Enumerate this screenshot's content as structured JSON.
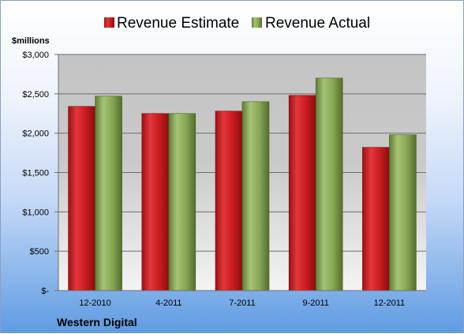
{
  "chart_data": {
    "type": "bar",
    "categories": [
      "12-2010",
      "4-2011",
      "7-2011",
      "9-2011",
      "12-2011"
    ],
    "series": [
      {
        "name": "Revenue Estimate",
        "values": [
          2340,
          2250,
          2280,
          2480,
          1820
        ],
        "color": "#d01e22"
      },
      {
        "name": "Revenue Actual",
        "values": [
          2470,
          2250,
          2400,
          2700,
          1980
        ],
        "color": "#8cae5a"
      }
    ],
    "unit_label": "$millions",
    "ylim": [
      0,
      3000
    ],
    "y_ticks": [
      {
        "value": 0,
        "label": "$-"
      },
      {
        "value": 500,
        "label": "$500"
      },
      {
        "value": 1000,
        "label": "$1,000"
      },
      {
        "value": 1500,
        "label": "$1,500"
      },
      {
        "value": 2000,
        "label": "$2,000"
      },
      {
        "value": 2500,
        "label": "$2,500"
      },
      {
        "value": 3000,
        "label": "$3,000"
      }
    ],
    "grid": true,
    "legend_position": "top",
    "source_label": "Western Digital"
  }
}
